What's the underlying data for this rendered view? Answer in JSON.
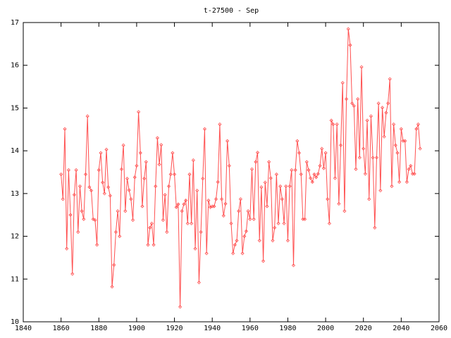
{
  "chart_data": {
    "type": "line",
    "title": "t-27500 - Sep",
    "x": [
      1860,
      1861,
      1862,
      1863,
      1864,
      1865,
      1866,
      1867,
      1868,
      1869,
      1870,
      1871,
      1872,
      1873,
      1874,
      1875,
      1876,
      1877,
      1878,
      1879,
      1880,
      1881,
      1882,
      1883,
      1884,
      1885,
      1886,
      1887,
      1888,
      1889,
      1890,
      1891,
      1892,
      1893,
      1894,
      1895,
      1896,
      1897,
      1898,
      1899,
      1900,
      1901,
      1902,
      1903,
      1904,
      1905,
      1906,
      1907,
      1908,
      1909,
      1910,
      1911,
      1912,
      1913,
      1914,
      1915,
      1916,
      1917,
      1918,
      1919,
      1920,
      1921,
      1922,
      1923,
      1924,
      1925,
      1926,
      1927,
      1928,
      1929,
      1930,
      1931,
      1932,
      1933,
      1934,
      1935,
      1936,
      1937,
      1938,
      1939,
      1940,
      1941,
      1942,
      1943,
      1944,
      1945,
      1946,
      1947,
      1948,
      1949,
      1950,
      1951,
      1952,
      1953,
      1954,
      1955,
      1956,
      1957,
      1958,
      1959,
      1960,
      1961,
      1962,
      1963,
      1964,
      1965,
      1966,
      1967,
      1968,
      1969,
      1970,
      1971,
      1972,
      1973,
      1974,
      1975,
      1976,
      1977,
      1978,
      1979,
      1980,
      1981,
      1982,
      1983,
      1984,
      1985,
      1986,
      1987,
      1988,
      1989,
      1990,
      1991,
      1992,
      1993,
      1994,
      1995,
      1996,
      1997,
      1998,
      1999,
      2000,
      2001,
      2002,
      2003,
      2004,
      2005,
      2006,
      2007,
      2008,
      2009,
      2010,
      2011,
      2012,
      2013,
      2014,
      2015,
      2016,
      2017,
      2018,
      2019,
      2020,
      2021,
      2022,
      2023,
      2024,
      2025,
      2026,
      2027,
      2028,
      2029,
      2030,
      2031,
      2032,
      2033,
      2034,
      2035,
      2036,
      2037,
      2038,
      2039,
      2040,
      2041,
      2042,
      2043,
      2044,
      2045,
      2046,
      2047,
      2048,
      2049,
      2050
    ],
    "series": [
      {
        "color": "#ff5050",
        "values": [
          13.45,
          12.87,
          14.51,
          11.71,
          13.55,
          12.5,
          11.12,
          12.97,
          13.55,
          12.1,
          13.17,
          12.59,
          12.4,
          13.45,
          14.81,
          13.15,
          13.07,
          12.4,
          12.38,
          11.8,
          13.55,
          13.95,
          13.26,
          13.0,
          14.03,
          13.15,
          12.95,
          10.82,
          11.33,
          12.1,
          12.59,
          12.0,
          13.57,
          14.13,
          12.59,
          13.35,
          13.08,
          12.87,
          12.38,
          13.38,
          13.65,
          14.91,
          13.95,
          12.7,
          13.35,
          13.74,
          11.8,
          12.2,
          12.3,
          11.8,
          13.17,
          14.3,
          13.68,
          14.14,
          12.38,
          12.97,
          12.1,
          13.17,
          13.45,
          13.95,
          13.45,
          12.68,
          12.75,
          10.35,
          12.59,
          12.75,
          12.84,
          12.3,
          13.45,
          12.3,
          13.78,
          11.71,
          13.07,
          10.92,
          12.1,
          13.35,
          14.51,
          11.6,
          12.84,
          12.68,
          12.7,
          12.7,
          12.87,
          13.27,
          14.62,
          12.87,
          12.48,
          12.76,
          14.23,
          13.65,
          12.3,
          11.6,
          11.8,
          11.9,
          12.59,
          12.87,
          11.6,
          12.0,
          12.12,
          12.59,
          12.4,
          13.57,
          12.4,
          13.74,
          13.96,
          11.9,
          13.15,
          11.42,
          13.26,
          12.7,
          13.74,
          13.36,
          11.9,
          12.2,
          13.45,
          12.3,
          13.17,
          12.87,
          12.3,
          13.17,
          11.9,
          13.17,
          13.55,
          11.32,
          13.55,
          14.23,
          13.95,
          13.45,
          12.4,
          12.4,
          13.74,
          13.55,
          13.36,
          13.27,
          13.45,
          13.38,
          13.46,
          13.65,
          14.05,
          13.59,
          13.95,
          12.87,
          12.3,
          14.71,
          14.62,
          13.36,
          14.62,
          12.76,
          14.13,
          15.59,
          12.59,
          15.21,
          16.85,
          16.47,
          15.11,
          15.05,
          13.57,
          15.21,
          13.84,
          15.96,
          14.05,
          13.46,
          14.71,
          12.87,
          14.81,
          13.84,
          12.2,
          13.84,
          15.11,
          13.07,
          15.01,
          14.33,
          14.89,
          15.11,
          15.68,
          13.17,
          14.62,
          14.13,
          13.95,
          13.27,
          14.51,
          14.23,
          14.23,
          13.27,
          13.57,
          13.65,
          13.46,
          13.46,
          14.51,
          14.62,
          14.05
        ]
      }
    ],
    "xlim": [
      1840,
      2060
    ],
    "xticks": [
      1840,
      1860,
      1880,
      1900,
      1920,
      1940,
      1960,
      1980,
      2000,
      2020,
      2040,
      2060
    ],
    "ylim": [
      10,
      17
    ],
    "yticks": [
      10,
      11,
      12,
      13,
      14,
      15,
      16,
      17
    ]
  }
}
